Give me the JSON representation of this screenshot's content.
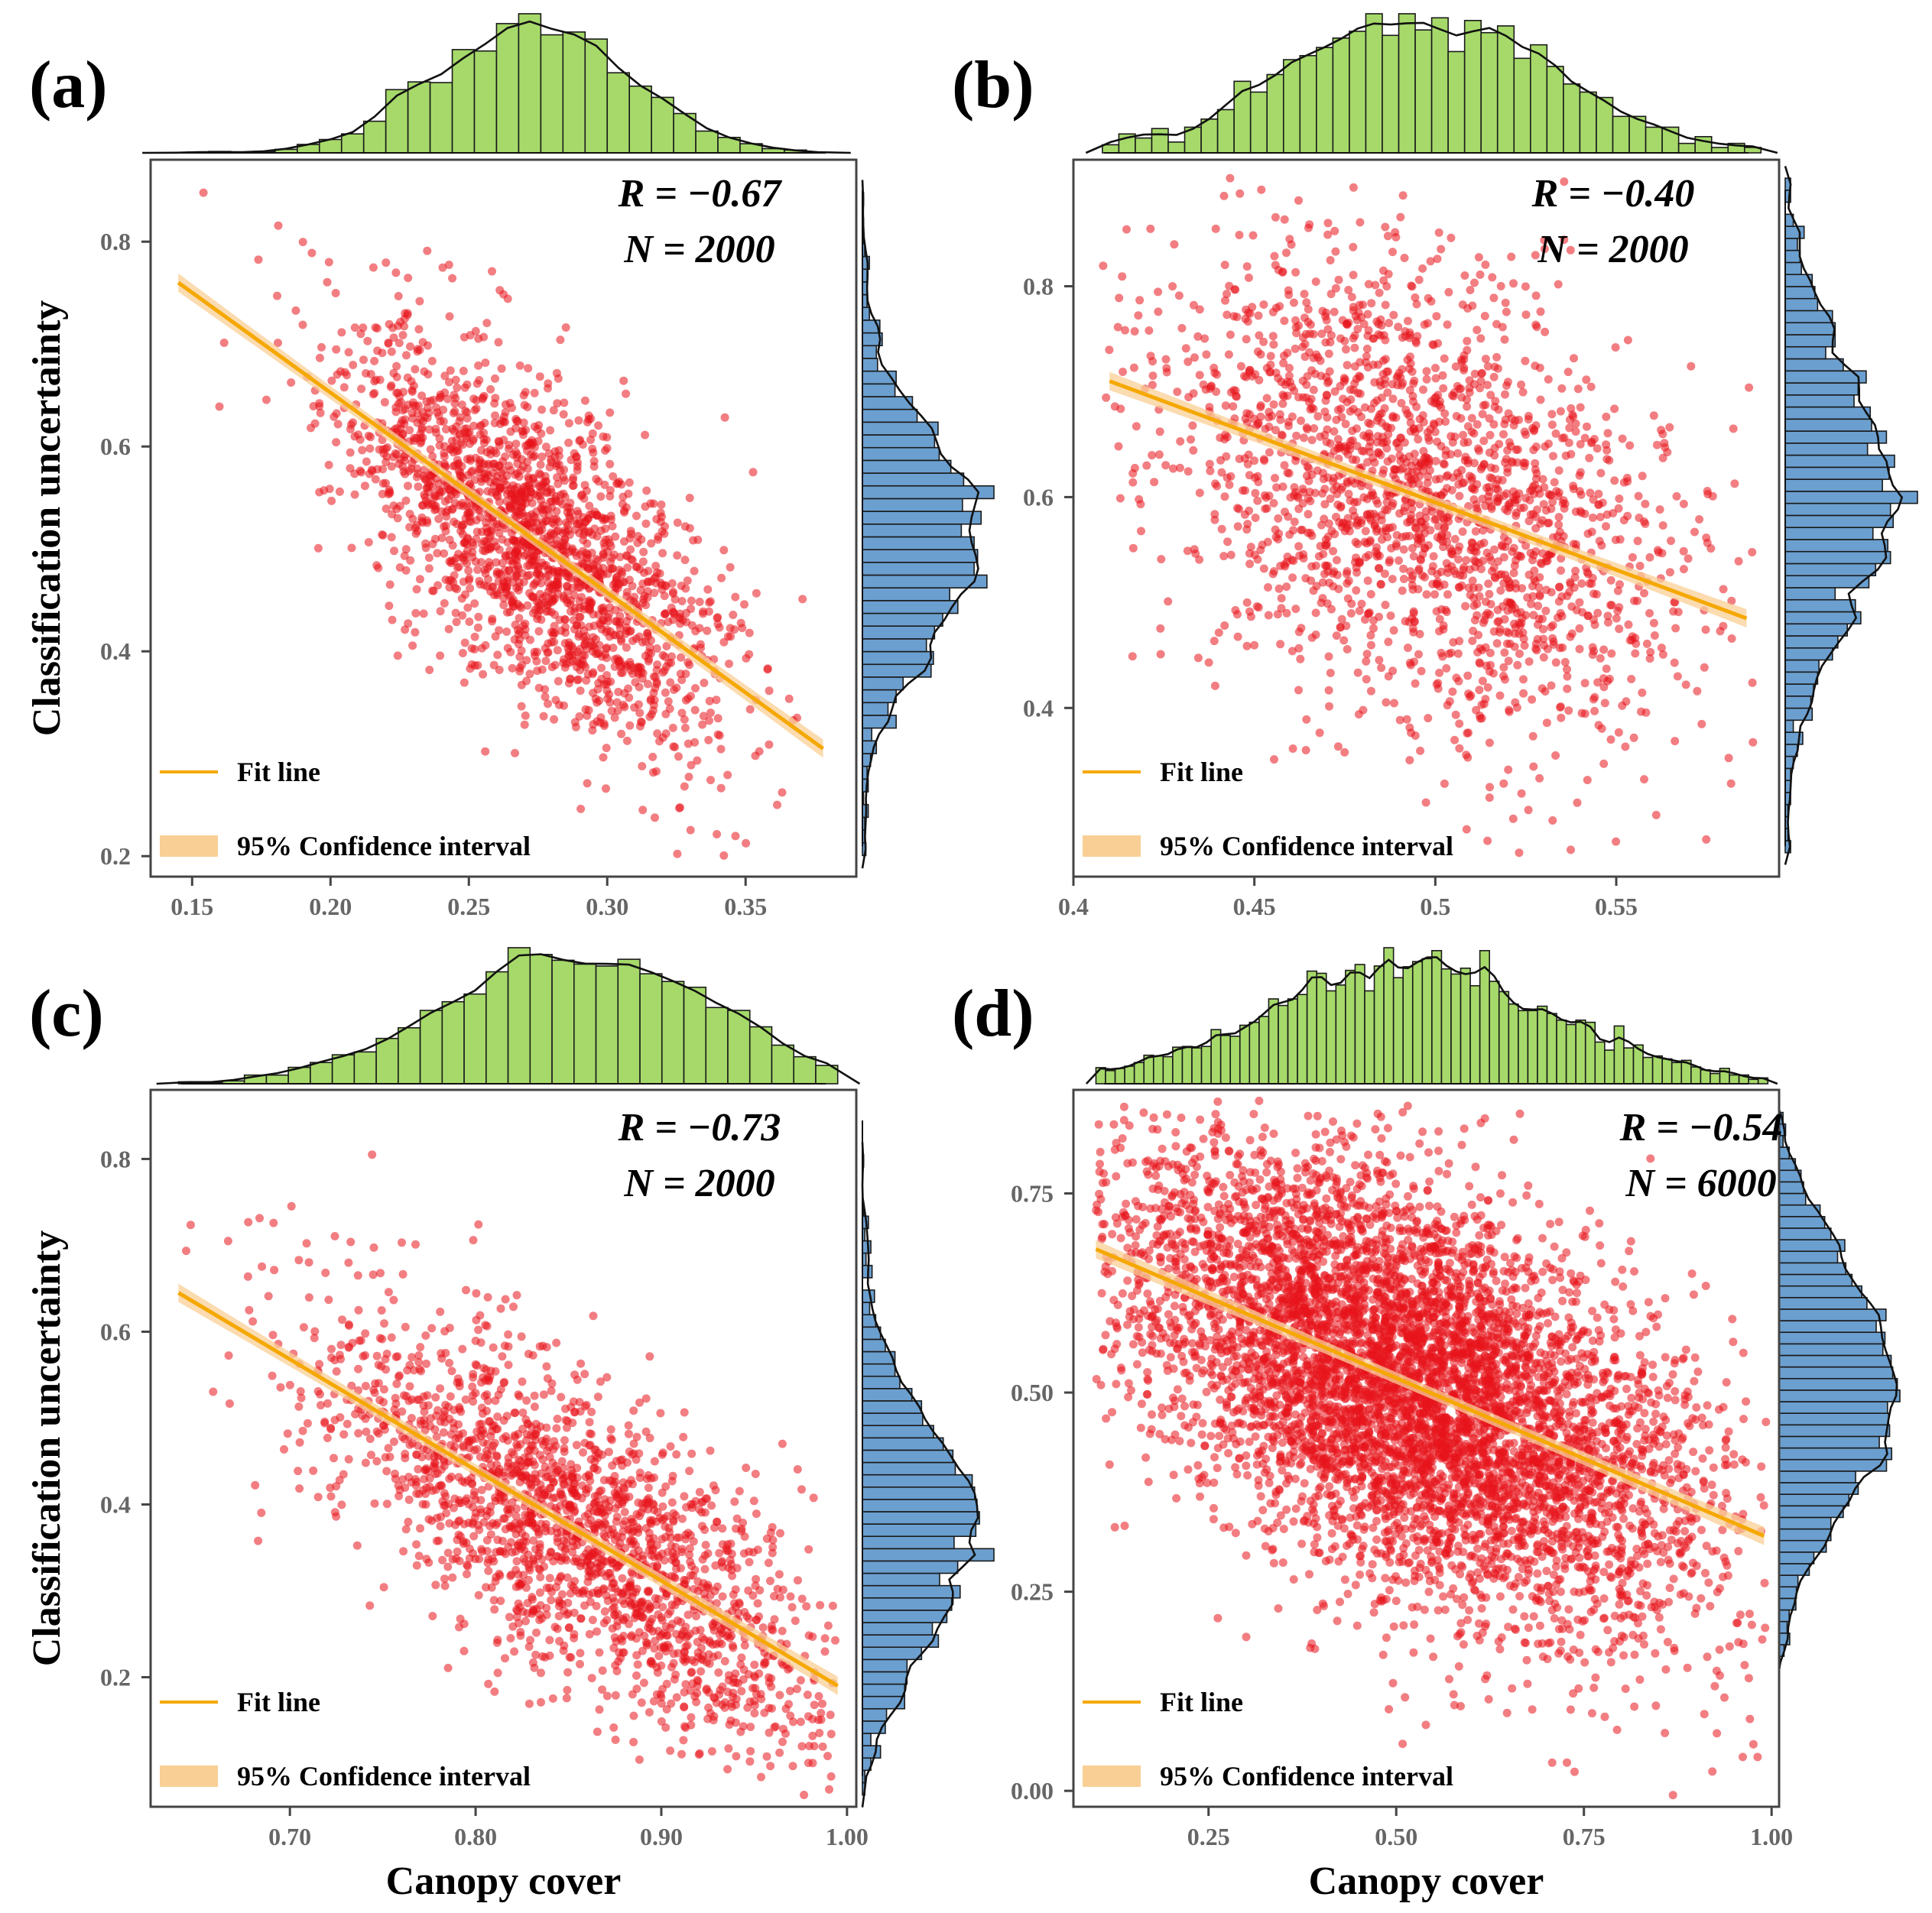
{
  "figure": {
    "xlabel": "Canopy cover",
    "ylabel": "Classification uncertainty",
    "colors": {
      "point": "#e8141b",
      "fit_line": "#f5a800",
      "ci_band": "#f9cf95",
      "hist_top": "#a6d96a",
      "hist_right": "#6b9fcf",
      "frame": "#444444"
    },
    "legend": {
      "fit": "Fit line",
      "ci": "95% Confidence interval"
    }
  },
  "chart_data": [
    {
      "panel": "(a)",
      "type": "scatter",
      "show_xlabel": false,
      "show_ylabel": true,
      "stat_r": "R  =  −0.67",
      "stat_n": "N = 2000",
      "n_points": 2000,
      "r": -0.67,
      "x_mean": 0.272,
      "x_sd": 0.034,
      "x_clip": [
        0.14,
        0.38
      ],
      "fit": {
        "x": [
          0.145,
          0.378
        ],
        "y": [
          0.76,
          0.305
        ]
      },
      "xlim": [
        0.135,
        0.39
      ],
      "ylim": [
        0.18,
        0.88
      ],
      "xticks": [
        0.15,
        0.2,
        0.25,
        0.3,
        0.35
      ],
      "xtick_labels": [
        "0.15",
        "0.20",
        "0.25",
        "0.30",
        "0.35"
      ],
      "yticks": [
        0.2,
        0.4,
        0.6,
        0.8
      ],
      "ytick_labels": [
        "0.2",
        "0.4",
        "0.6",
        "0.8"
      ],
      "hist_x_bins": 30,
      "hist_y_bins": 52,
      "seed": 11
    },
    {
      "panel": "(b)",
      "type": "scatter",
      "show_xlabel": false,
      "show_ylabel": false,
      "stat_r": "R  =  −0.40",
      "stat_n": "N = 2000",
      "n_points": 2000,
      "r": -0.4,
      "x_mean": 0.495,
      "x_sd": 0.036,
      "x_clip": [
        0.408,
        0.59
      ],
      "fit": {
        "x": [
          0.41,
          0.586
        ],
        "y": [
          0.71,
          0.485
        ]
      },
      "xlim": [
        0.4,
        0.595
      ],
      "ylim": [
        0.24,
        0.92
      ],
      "xticks": [
        0.4,
        0.45,
        0.5,
        0.55
      ],
      "xtick_labels": [
        "0.4",
        "0.45",
        "0.5",
        "0.55"
      ],
      "yticks": [
        0.4,
        0.6,
        0.8
      ],
      "ytick_labels": [
        "0.4",
        "0.6",
        "0.8"
      ],
      "hist_x_bins": 40,
      "hist_y_bins": 56,
      "seed": 23
    },
    {
      "panel": "(c)",
      "type": "scatter",
      "show_xlabel": true,
      "show_ylabel": true,
      "stat_r": "R  =  −0.73",
      "stat_n": "N = 2000",
      "n_points": 2000,
      "r": -0.73,
      "x_mean": 0.855,
      "x_sd": 0.072,
      "x_clip": [
        0.64,
        0.995
      ],
      "fit": {
        "x": [
          0.64,
          0.995
        ],
        "y": [
          0.645,
          0.19
        ]
      },
      "xlim": [
        0.625,
        1.005
      ],
      "ylim": [
        0.05,
        0.88
      ],
      "xticks": [
        0.7,
        0.8,
        0.9,
        1.0
      ],
      "xtick_labels": [
        "0.70",
        "0.80",
        "0.90",
        "1.00"
      ],
      "yticks": [
        0.2,
        0.4,
        0.6,
        0.8
      ],
      "ytick_labels": [
        "0.2",
        "0.4",
        "0.6",
        "0.8"
      ],
      "hist_x_bins": 30,
      "hist_y_bins": 52,
      "seed": 37
    },
    {
      "panel": "(d)",
      "type": "scatter",
      "show_xlabel": true,
      "show_ylabel": false,
      "stat_r": "R  =  −0.54",
      "stat_n": "N = 6000",
      "n_points": 6000,
      "r": -0.54,
      "x_mean": 0.52,
      "x_sd": 0.195,
      "x_clip": [
        0.1,
        0.995
      ],
      "fit": {
        "x": [
          0.1,
          0.99
        ],
        "y": [
          0.68,
          0.32
        ]
      },
      "xlim": [
        0.07,
        1.01
      ],
      "ylim": [
        -0.02,
        0.88
      ],
      "xticks": [
        0.25,
        0.5,
        0.75,
        1.0
      ],
      "xtick_labels": [
        "0.25",
        "0.50",
        "0.75",
        "1.00"
      ],
      "yticks": [
        0.0,
        0.25,
        0.5,
        0.75
      ],
      "ytick_labels": [
        "0.00",
        "0.25",
        "0.50",
        "0.75"
      ],
      "hist_x_bins": 70,
      "hist_y_bins": 60,
      "seed": 53
    }
  ]
}
